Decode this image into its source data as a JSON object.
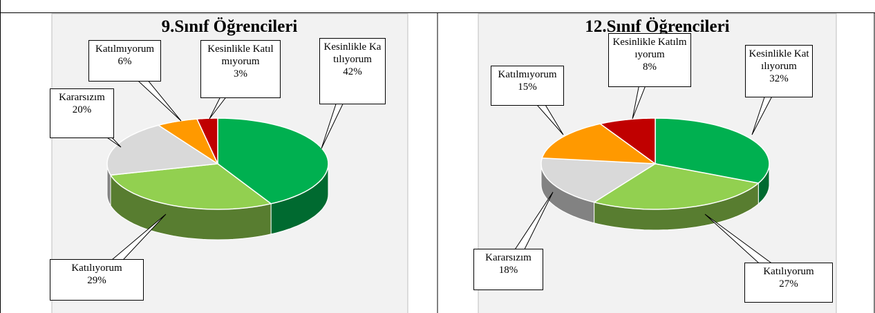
{
  "chart_data": [
    {
      "type": "pie",
      "title": "9.Sınıf Öğrencileri",
      "categories": [
        "Kesinlikle Katılıyorum",
        "Katılıyorum",
        "Kararsızım",
        "Katılmıyorum",
        "Kesinlikle Katılmıyorum"
      ],
      "values": [
        42,
        29,
        20,
        6,
        3
      ],
      "value_labels": [
        "42%",
        "29%",
        "20%",
        "6%",
        "3%"
      ],
      "colors": [
        "#00b050",
        "#92d050",
        "#d9d9d9",
        "#ff9900",
        "#c00000"
      ]
    },
    {
      "type": "pie",
      "title": "12.Sınıf Öğrencileri",
      "categories": [
        "Kesinlikle Katılıyorum",
        "Katılıyorum",
        "Kararsızım",
        "Katılmıyorum",
        "Kesinlikle Katılmıyorum"
      ],
      "values": [
        32,
        27,
        18,
        15,
        8
      ],
      "value_labels": [
        "32%",
        "27%",
        "18%",
        "15%",
        "8%"
      ],
      "colors": [
        "#00b050",
        "#92d050",
        "#d9d9d9",
        "#ff9900",
        "#c00000"
      ]
    }
  ]
}
